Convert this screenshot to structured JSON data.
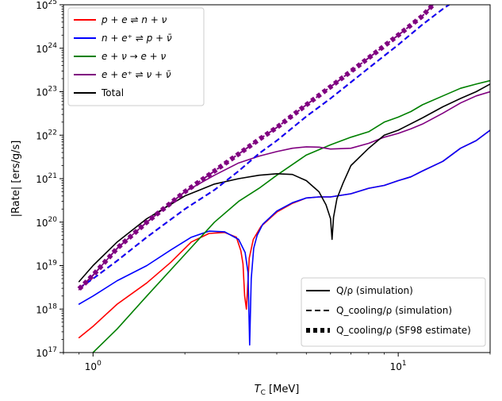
{
  "chart_data": {
    "type": "line",
    "title": "",
    "xlabel": "T_C [MeV]",
    "ylabel": "|Rate| [ers/g/s]",
    "xscale": "log",
    "yscale": "log",
    "xlim": [
      0.8,
      20
    ],
    "ylim": [
      1e+17,
      1e+25
    ],
    "grid": false,
    "x_ticks": [
      {
        "value": 1,
        "base": "10",
        "exp": "0"
      },
      {
        "value": 10,
        "base": "10",
        "exp": "1"
      }
    ],
    "y_ticks": [
      {
        "value": 1e+17,
        "base": "10",
        "exp": "17"
      },
      {
        "value": 1e+18,
        "base": "10",
        "exp": "18"
      },
      {
        "value": 1e+19,
        "base": "10",
        "exp": "19"
      },
      {
        "value": 1e+20,
        "base": "10",
        "exp": "20"
      },
      {
        "value": 1e+21,
        "base": "10",
        "exp": "21"
      },
      {
        "value": 1e+22,
        "base": "10",
        "exp": "22"
      },
      {
        "value": 1e+23,
        "base": "10",
        "exp": "23"
      },
      {
        "value": 1e+24,
        "base": "10",
        "exp": "24"
      },
      {
        "value": 1e+25,
        "base": "10",
        "exp": "25"
      }
    ],
    "legend_processes": {
      "placement": "top-left",
      "entries": [
        {
          "name": "p + e ⇌ n + ν",
          "color": "#ff0000"
        },
        {
          "name": "n + e⁺ ⇌ p + ν̄",
          "color": "#0000ff"
        },
        {
          "name": "e + ν → e + ν",
          "color": "#008000"
        },
        {
          "name": "e + e⁺ ⇌ ν + ν̄",
          "color": "#800080"
        },
        {
          "name": "Total",
          "color": "#000000"
        }
      ]
    },
    "legend_styles": {
      "placement": "bottom-right",
      "entries": [
        {
          "style": "solid",
          "label": "Q/ρ (simulation)"
        },
        {
          "style": "dashed",
          "label": "Q_cooling/ρ (simulation)"
        },
        {
          "style": "dotted",
          "label": "Q_cooling/ρ (SF98 estimate)"
        }
      ]
    },
    "series": [
      {
        "name": "p + e ⇌ n + ν",
        "style": "solid",
        "color": "#ff0000",
        "x": [
          0.9,
          1.0,
          1.2,
          1.5,
          1.8,
          2.1,
          2.4,
          2.7,
          2.95,
          3.05,
          3.1,
          3.14,
          3.18,
          3.25,
          3.35,
          3.55,
          4.0,
          4.5,
          5.0,
          5.5,
          6.0,
          7.0,
          8.0,
          9.0,
          10.0,
          11.0,
          12.0,
          14.0,
          16.0,
          18.0,
          20.0
        ],
        "y": [
          2.2e+17,
          4e+17,
          1.3e+18,
          4e+18,
          1.2e+19,
          3.5e+19,
          5.5e+19,
          5.8e+19,
          4.5e+19,
          2.2e+19,
          1.1e+19,
          2e+18,
          1e+18,
          1.5e+19,
          4e+19,
          8e+19,
          1.7e+20,
          2.7e+20,
          3.6e+20,
          3.8e+20,
          3.8e+20,
          4.5e+20,
          6e+20,
          7e+20,
          9e+20,
          1.1e+21,
          1.5e+21,
          2.5e+21,
          5e+21,
          7.5e+21,
          1.3e+22
        ]
      },
      {
        "name": "n + e⁺ ⇌ p + ν̄",
        "style": "solid",
        "color": "#0000ff",
        "x": [
          0.9,
          1.0,
          1.2,
          1.5,
          1.8,
          2.1,
          2.4,
          2.7,
          3.0,
          3.15,
          3.22,
          3.26,
          3.3,
          3.36,
          3.45,
          3.6,
          4.0,
          4.5,
          5.0,
          5.5,
          6.0,
          7.0,
          8.0,
          9.0,
          10.0,
          11.0,
          12.0,
          14.0,
          16.0,
          18.0,
          20.0
        ],
        "y": [
          1.3e+18,
          2e+18,
          4.5e+18,
          1e+19,
          2.3e+19,
          4.5e+19,
          6.2e+19,
          6e+19,
          4e+19,
          2e+19,
          7e+18,
          1.5e+17,
          5e+18,
          2.5e+19,
          5e+19,
          9e+19,
          1.8e+20,
          2.8e+20,
          3.6e+20,
          3.8e+20,
          3.8e+20,
          4.5e+20,
          6e+20,
          7e+20,
          9e+20,
          1.1e+21,
          1.5e+21,
          2.5e+21,
          5e+21,
          7.5e+21,
          1.3e+22
        ]
      },
      {
        "name": "e + ν → e + ν",
        "style": "solid",
        "color": "#008000",
        "x": [
          1.0,
          1.2,
          1.5,
          2.0,
          2.5,
          3.0,
          3.5,
          4.0,
          5.0,
          6.0,
          7.0,
          8.0,
          9.0,
          10.0,
          11.0,
          12.0,
          14.0,
          16.0,
          18.0,
          20.0
        ],
        "y": [
          1e+17,
          3.5e+17,
          2e+18,
          1.8e+19,
          1e+20,
          3e+20,
          6e+20,
          1.2e+21,
          3.5e+21,
          6e+21,
          9e+21,
          1.2e+22,
          2e+22,
          2.6e+22,
          3.5e+22,
          5e+22,
          8e+22,
          1.2e+23,
          1.5e+23,
          1.8e+23
        ]
      },
      {
        "name": "e + e⁺ ⇌ ν + ν̄",
        "style": "solid",
        "color": "#800080",
        "x": [
          0.9,
          1.0,
          1.2,
          1.5,
          2.0,
          2.5,
          3.0,
          3.5,
          4.0,
          4.5,
          5.0,
          5.5,
          6.0,
          7.0,
          8.0,
          9.0,
          10.0,
          11.0,
          12.0,
          14.0,
          16.0,
          18.0,
          20.0
        ],
        "y": [
          2.8e+18,
          6e+18,
          2.5e+19,
          1e+20,
          5e+20,
          1.2e+21,
          2.3e+21,
          3.3e+21,
          4.2e+21,
          5e+21,
          5.4e+21,
          5.3e+21,
          4.8e+21,
          5e+21,
          6.5e+21,
          9e+21,
          1.1e+22,
          1.4e+22,
          1.8e+22,
          3.2e+22,
          5.5e+22,
          8e+22,
          1e+23
        ]
      },
      {
        "name": "Total",
        "style": "solid",
        "color": "#000000",
        "x": [
          0.9,
          1.0,
          1.2,
          1.5,
          2.0,
          2.5,
          3.0,
          3.5,
          4.0,
          4.5,
          5.0,
          5.5,
          5.8,
          6.0,
          6.07,
          6.14,
          6.3,
          6.6,
          7.0,
          8.0,
          9.0,
          10.0,
          12.0,
          14.0,
          16.0,
          18.0,
          20.0
        ],
        "y": [
          4.3e+18,
          1e+19,
          3.5e+19,
          1.2e+20,
          4e+20,
          7.5e+20,
          1e+21,
          1.2e+21,
          1.3e+21,
          1.25e+21,
          9e+20,
          5e+20,
          2.5e+20,
          1.2e+20,
          4e+19,
          1.3e+20,
          3.5e+20,
          8e+20,
          2e+21,
          5e+21,
          1e+22,
          1.3e+22,
          2.5e+22,
          4.5e+22,
          7e+22,
          1e+23,
          1.5e+23
        ]
      },
      {
        "name": "p + e ⇌ n + ν",
        "style": "dashed",
        "color": "#ff0000",
        "x": [
          0.9,
          1.0,
          1.2,
          1.5,
          2.0,
          2.5,
          3.0,
          3.5,
          4.0,
          5.0,
          6.0,
          8.0,
          10.0,
          12.0,
          14.0,
          15.5
        ],
        "y": [
          3e+18,
          5e+18,
          1.3e+19,
          4.5e+19,
          2e+20,
          5.5e+20,
          1.5e+21,
          3.8e+21,
          7.5e+21,
          2.7e+22,
          7e+22,
          3.5e+23,
          1.2e+24,
          3.5e+24,
          8e+24,
          1.3e+25
        ]
      },
      {
        "name": "n + e⁺ ⇌ p + ν̄",
        "style": "dashed",
        "color": "#0000ff",
        "x": [
          0.9,
          1.0,
          1.2,
          1.5,
          2.0,
          2.5,
          3.0,
          3.5,
          4.0,
          5.0,
          6.0,
          8.0,
          10.0,
          12.0,
          14.0,
          15.5
        ],
        "y": [
          3e+18,
          5e+18,
          1.3e+19,
          4.5e+19,
          2e+20,
          5.5e+20,
          1.5e+21,
          3.8e+21,
          7.5e+21,
          2.7e+22,
          7e+22,
          3.5e+23,
          1.2e+24,
          3.5e+24,
          8e+24,
          1.3e+25
        ]
      },
      {
        "name": "e + e⁺ ⇌ ν + ν̄",
        "style": "dashed",
        "color": "#800080",
        "x": [
          0.9,
          1.0,
          1.2,
          1.5,
          2.0,
          2.5,
          3.0,
          3.5,
          4.0,
          5.0,
          6.0,
          8.0,
          10.0,
          12.0,
          13.0
        ],
        "y": [
          2.9e+18,
          6e+18,
          2.5e+19,
          1e+20,
          5e+20,
          1.5e+21,
          3.7e+21,
          8e+21,
          1.5e+22,
          5e+22,
          1.3e+23,
          6e+23,
          2e+24,
          5.5e+24,
          1e+25
        ]
      },
      {
        "name": "e + e⁺ ⇌ ν + ν̄",
        "style": "dotted",
        "color": "#800080",
        "x": [
          0.9,
          1.0,
          1.2,
          1.5,
          2.0,
          2.5,
          3.0,
          3.5,
          4.0,
          5.0,
          6.0,
          8.0,
          10.0,
          12.0,
          13.0
        ],
        "y": [
          2.9e+18,
          6e+18,
          2.5e+19,
          1e+20,
          5e+20,
          1.5e+21,
          3.7e+21,
          8e+21,
          1.5e+22,
          5e+22,
          1.3e+23,
          6e+23,
          2e+24,
          5.5e+24,
          1e+25
        ]
      }
    ]
  }
}
